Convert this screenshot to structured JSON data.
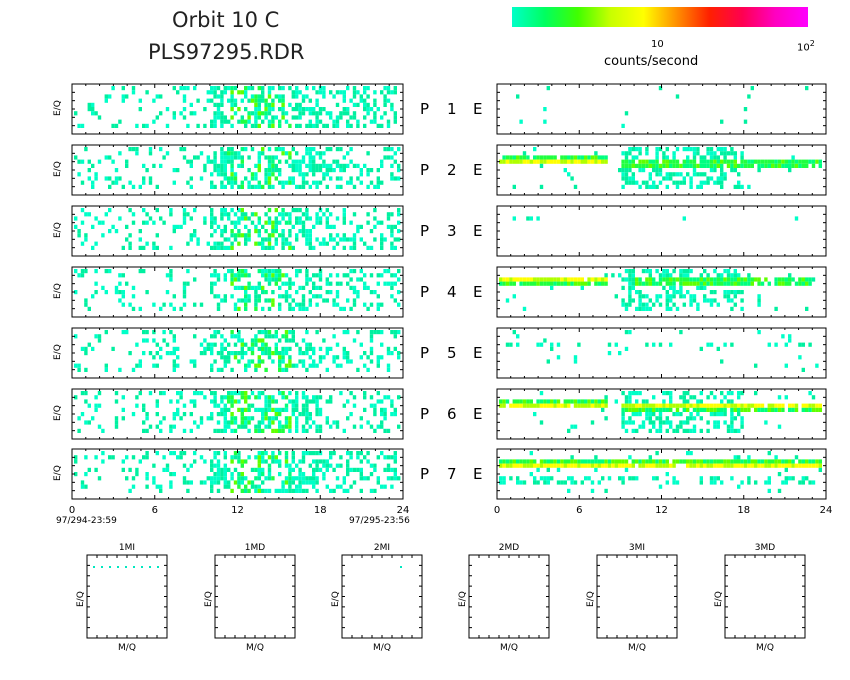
{
  "header": {
    "title_line1": "Orbit 10 C",
    "title_line2": "PLS97295.RDR"
  },
  "colorbar": {
    "label": "counts/second",
    "tick_10": "10",
    "tick_100_base": "10",
    "tick_100_exp": "2",
    "colors": [
      "#00ffc8",
      "#00ff60",
      "#40ff00",
      "#c8ff00",
      "#ffff00",
      "#ff9000",
      "#ff2000",
      "#ff0050",
      "#ff00c0",
      "#ff00ff"
    ]
  },
  "panel_ylabel": "E/Q",
  "left_column": {
    "x_ticks": [
      "0",
      "6",
      "12",
      "18",
      "24"
    ],
    "start_time": "97/294-23:59",
    "end_time": "97/295-23:56"
  },
  "right_column": {
    "x_ticks": [
      "0",
      "6",
      "12",
      "18",
      "24"
    ]
  },
  "rows": [
    {
      "p_label": "P",
      "p_num": "1",
      "e_label": "E"
    },
    {
      "p_label": "P",
      "p_num": "2",
      "e_label": "E"
    },
    {
      "p_label": "P",
      "p_num": "3",
      "e_label": "E"
    },
    {
      "p_label": "P",
      "p_num": "4",
      "e_label": "E"
    },
    {
      "p_label": "P",
      "p_num": "5",
      "e_label": "E"
    },
    {
      "p_label": "P",
      "p_num": "6",
      "e_label": "E"
    },
    {
      "p_label": "P",
      "p_num": "7",
      "e_label": "E"
    }
  ],
  "mq_panels": {
    "ylabel": "E/Q",
    "xlabel": "M/Q",
    "titles": [
      "1MI",
      "1MD",
      "2MI",
      "2MD",
      "3MI",
      "3MD"
    ]
  },
  "chart_data": {
    "type": "heatmap",
    "x_unit_axis": "hours",
    "xlim": [
      0,
      24
    ],
    "left_density_profile": [
      {
        "rows": "P1-P7",
        "x_range": [
          0,
          10
        ],
        "density": "sparse"
      },
      {
        "rows": "P1-P7",
        "x_range": [
          10,
          18
        ],
        "density": "dense"
      },
      {
        "rows": "P1-P7",
        "x_range": [
          18,
          24
        ],
        "density": "moderate"
      }
    ],
    "right_bands": [
      {
        "row": "P2",
        "x_ranges": [
          [
            0,
            8
          ],
          [
            9,
            24
          ]
        ],
        "level": "high (yellow-green)"
      },
      {
        "row": "P4",
        "x_ranges": [
          [
            0,
            8
          ],
          [
            10,
            23
          ]
        ],
        "level": "high (yellow-green)"
      },
      {
        "row": "P6",
        "x_ranges": [
          [
            0,
            8
          ],
          [
            9,
            24
          ]
        ],
        "level": "high (yellow-green)"
      },
      {
        "row": "P7",
        "x_ranges": [
          [
            0,
            24
          ]
        ],
        "level": "moderate (green)"
      }
    ],
    "colorbar_scale": "log",
    "colorbar_range_note": "1 to 10^2 counts/second"
  }
}
